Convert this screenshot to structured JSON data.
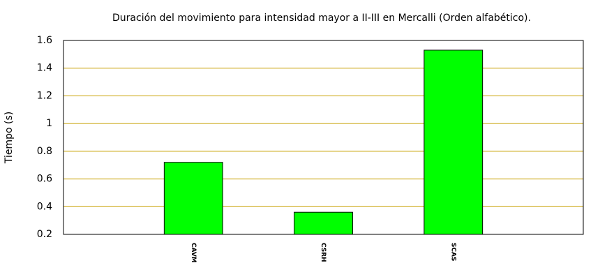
{
  "chart_data": {
    "type": "bar",
    "title": "Duración del movimiento para intensidad mayor a II-III en Mercalli (Orden alfabético).",
    "ylabel": "Tiempo (s)",
    "categories": [
      "CAVM",
      "CSRH",
      "SCAS"
    ],
    "values": [
      0.72,
      0.36,
      1.53
    ],
    "color": "#00ff00",
    "ylim": [
      0.2,
      1.6
    ],
    "yticks": [
      0.2,
      0.4,
      0.6,
      0.8,
      1,
      1.2,
      1.4,
      1.6
    ],
    "grid": true,
    "grid_color": "#c8a000"
  }
}
